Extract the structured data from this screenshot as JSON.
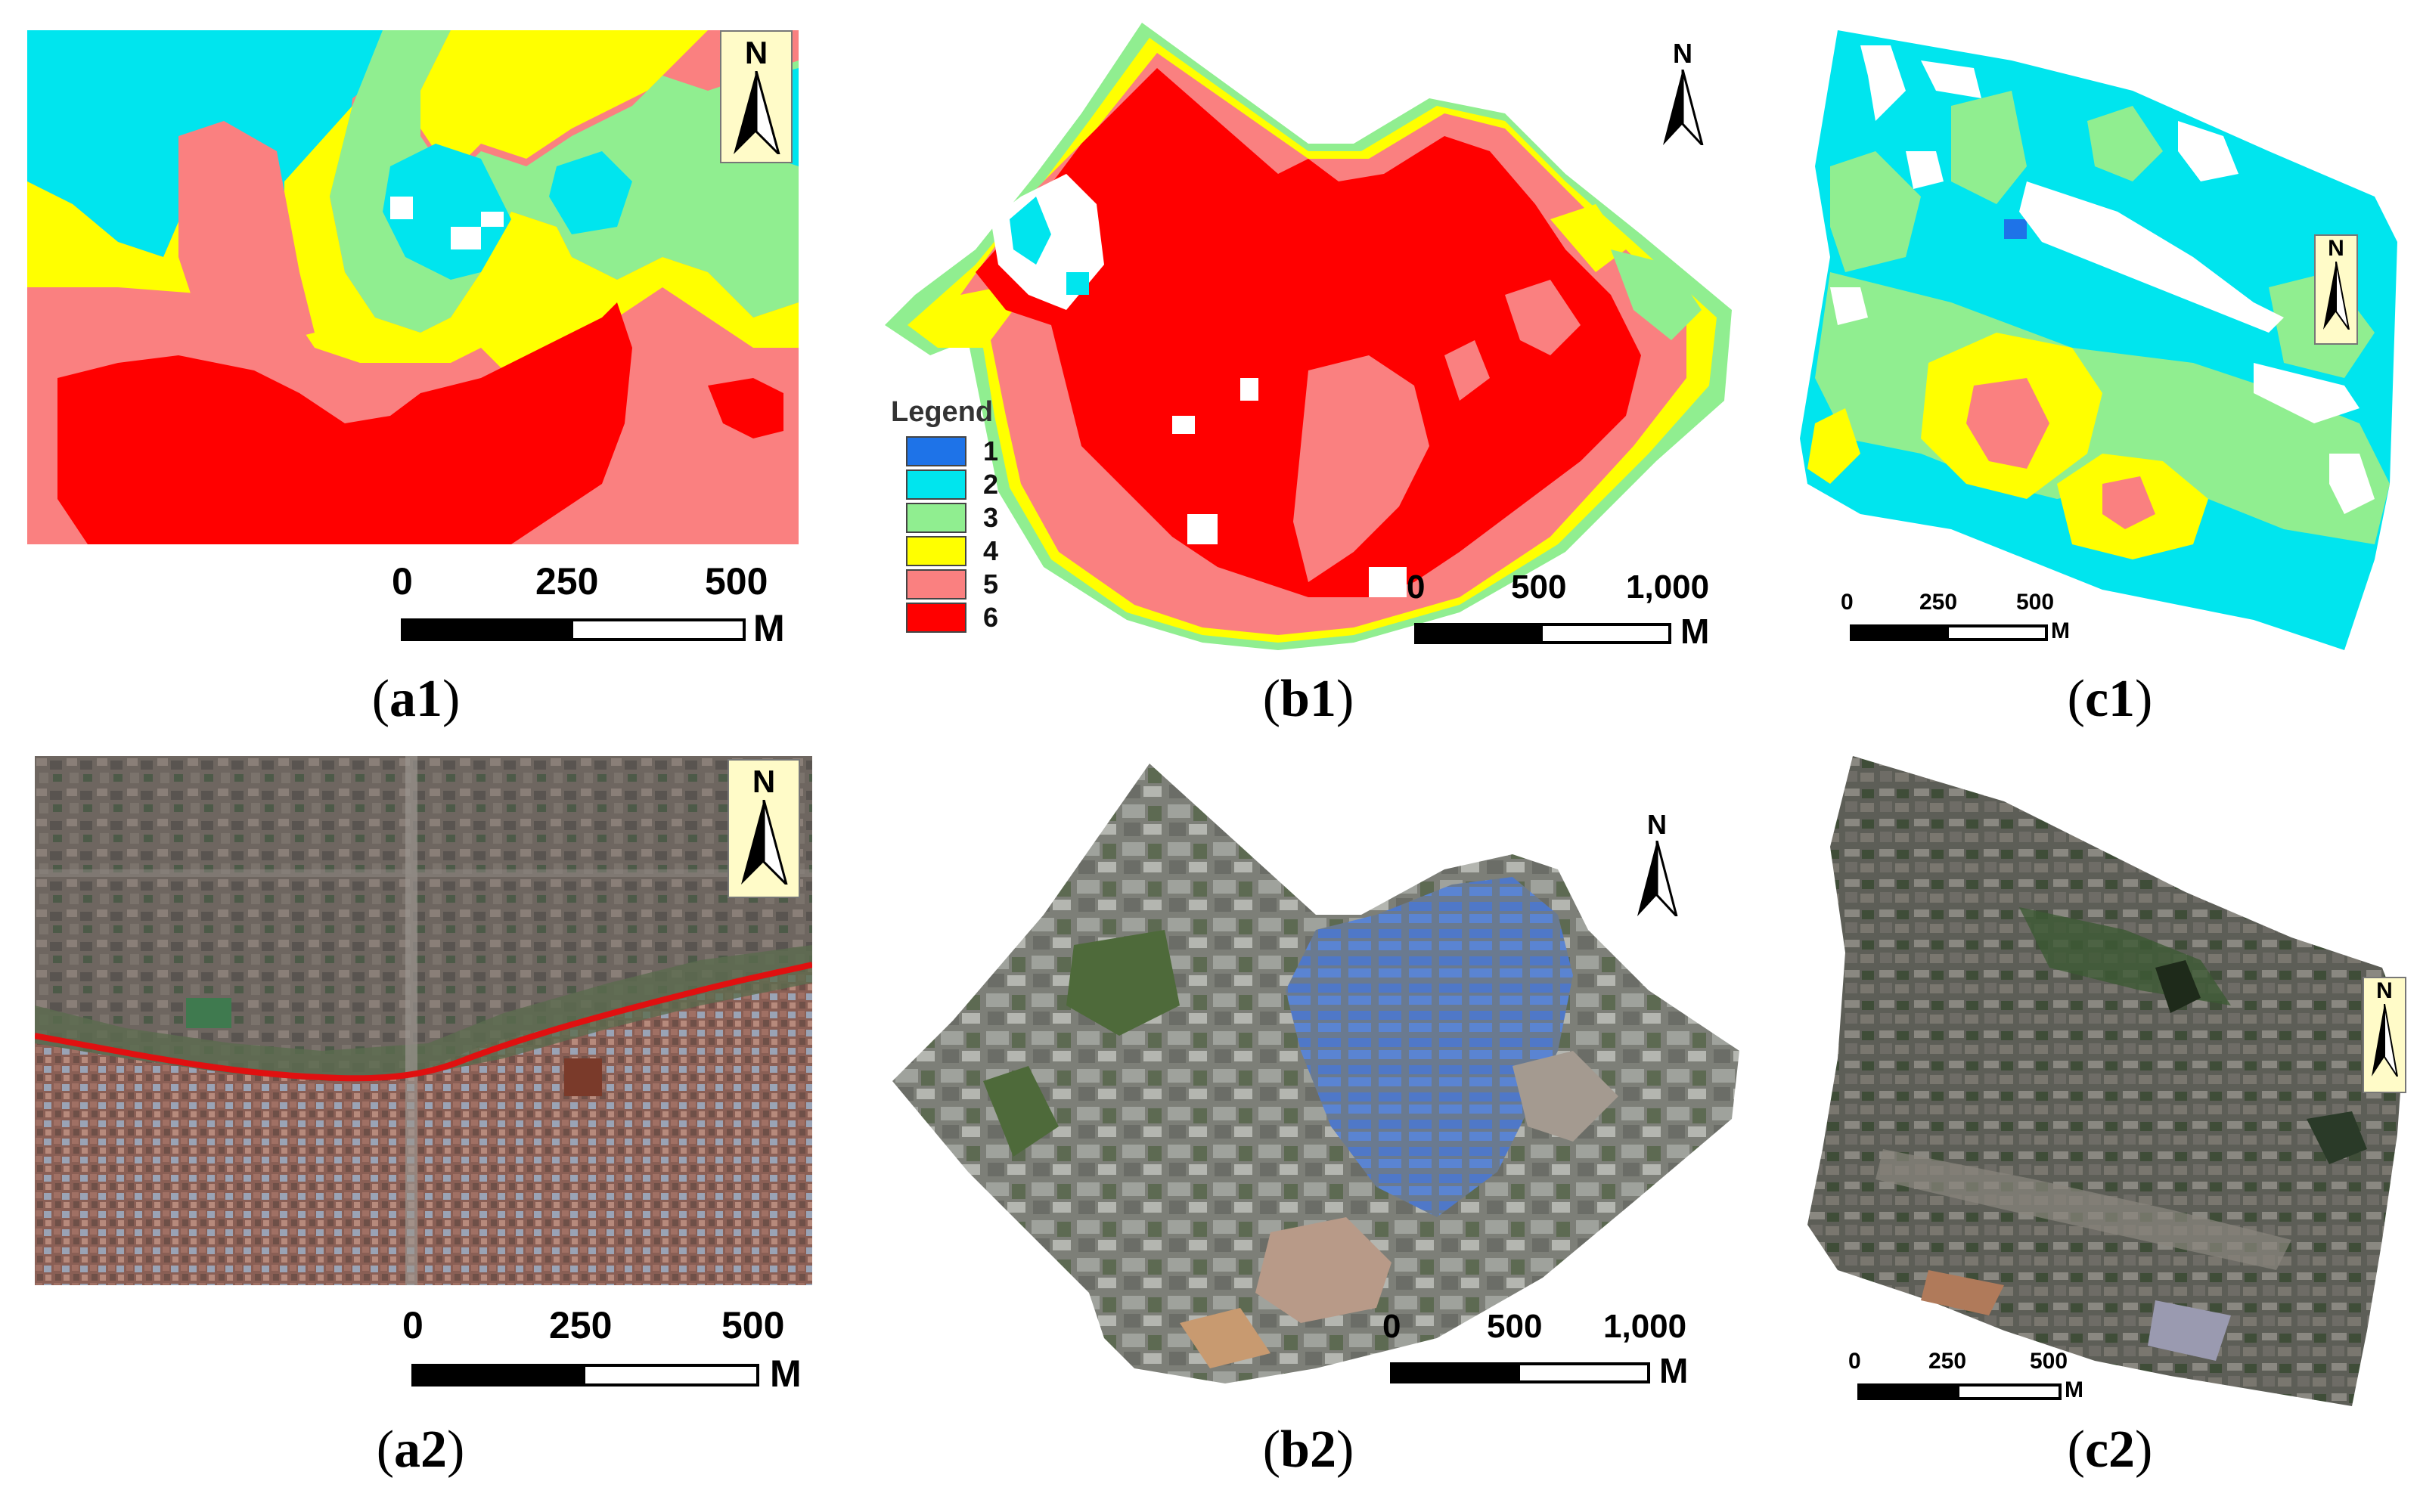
{
  "panels": {
    "a1": {
      "caption": "a1",
      "scale": {
        "ticks": [
          "0",
          "250",
          "500"
        ],
        "unit": "M"
      },
      "north": "N"
    },
    "b1": {
      "caption": "b1",
      "scale": {
        "ticks": [
          "0",
          "500",
          "1,000"
        ],
        "unit": "M"
      },
      "north": "N"
    },
    "c1": {
      "caption": "c1",
      "scale": {
        "ticks": [
          "0",
          "250",
          "500"
        ],
        "unit": "M"
      },
      "north": "N"
    },
    "a2": {
      "caption": "a2",
      "scale": {
        "ticks": [
          "0",
          "250",
          "500"
        ],
        "unit": "M"
      },
      "north": "N"
    },
    "b2": {
      "caption": "b2",
      "scale": {
        "ticks": [
          "0",
          "500",
          "1,000"
        ],
        "unit": "M"
      },
      "north": "N"
    },
    "c2": {
      "caption": "c2",
      "scale": {
        "ticks": [
          "0",
          "250",
          "500"
        ],
        "unit": "M"
      },
      "north": "N"
    }
  },
  "legend": {
    "title": "Legend",
    "classes": [
      {
        "label": "1",
        "color": "#1e73e8"
      },
      {
        "label": "2",
        "color": "#00e5ee"
      },
      {
        "label": "3",
        "color": "#90ee90"
      },
      {
        "label": "4",
        "color": "#ffff00"
      },
      {
        "label": "5",
        "color": "#fa8080"
      },
      {
        "label": "6",
        "color": "#ff0000"
      }
    ]
  },
  "colors": {
    "class1": "#1e73e8",
    "class2": "#00e5ee",
    "class3": "#90ee90",
    "class4": "#ffff00",
    "class5": "#fa8080",
    "class6": "#ff0000",
    "river_line": "#e01010",
    "north_box": "#fffbc8"
  }
}
